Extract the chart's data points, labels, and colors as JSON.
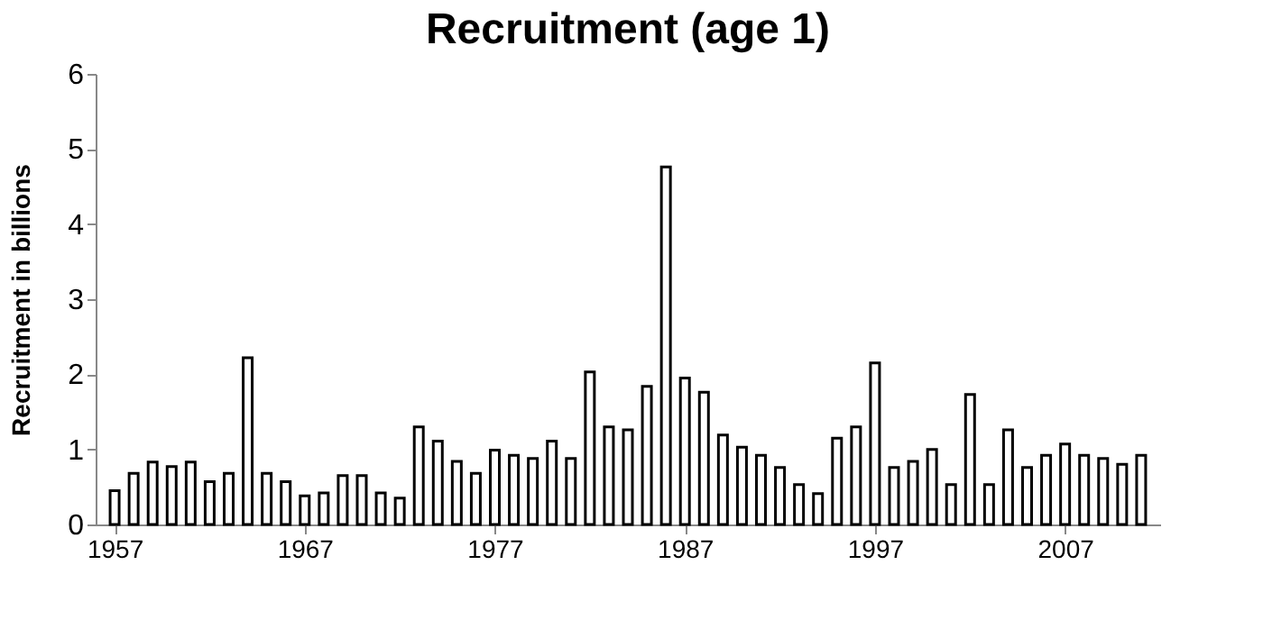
{
  "chart_data": {
    "type": "bar",
    "title": "Recruitment (age 1)",
    "ylabel": "Recruitment in billions",
    "x": [
      1957,
      1958,
      1959,
      1960,
      1961,
      1962,
      1963,
      1964,
      1965,
      1966,
      1967,
      1968,
      1969,
      1970,
      1971,
      1972,
      1973,
      1974,
      1975,
      1976,
      1977,
      1978,
      1979,
      1980,
      1981,
      1982,
      1983,
      1984,
      1985,
      1986,
      1987,
      1988,
      1989,
      1990,
      1991,
      1992,
      1993,
      1994,
      1995,
      1996,
      1997,
      1998,
      1999,
      2000,
      2001,
      2002,
      2003,
      2004,
      2005,
      2006,
      2007,
      2008,
      2009,
      2010,
      2011
    ],
    "values": [
      0.45,
      0.68,
      0.83,
      0.77,
      0.83,
      0.57,
      0.68,
      2.22,
      0.68,
      0.57,
      0.38,
      0.42,
      0.65,
      0.65,
      0.42,
      0.35,
      1.3,
      1.11,
      0.84,
      0.68,
      0.99,
      0.92,
      0.88,
      1.11,
      0.88,
      2.03,
      1.3,
      1.26,
      1.84,
      4.76,
      1.95,
      1.76,
      1.19,
      1.03,
      0.92,
      0.76,
      0.53,
      0.41,
      1.15,
      1.3,
      2.15,
      0.76,
      0.84,
      1.0,
      0.53,
      1.73,
      0.53,
      1.26,
      0.76,
      0.92,
      1.07,
      0.92,
      0.88,
      0.8,
      0.92
    ],
    "color": "#ffffff",
    "xlim": [
      1956,
      2012
    ],
    "xticks": [
      1957,
      1967,
      1977,
      1987,
      1997,
      2007
    ],
    "ylim": [
      0,
      6
    ],
    "yticks": [
      0,
      1,
      2,
      3,
      4,
      5,
      6
    ],
    "grid": false
  }
}
